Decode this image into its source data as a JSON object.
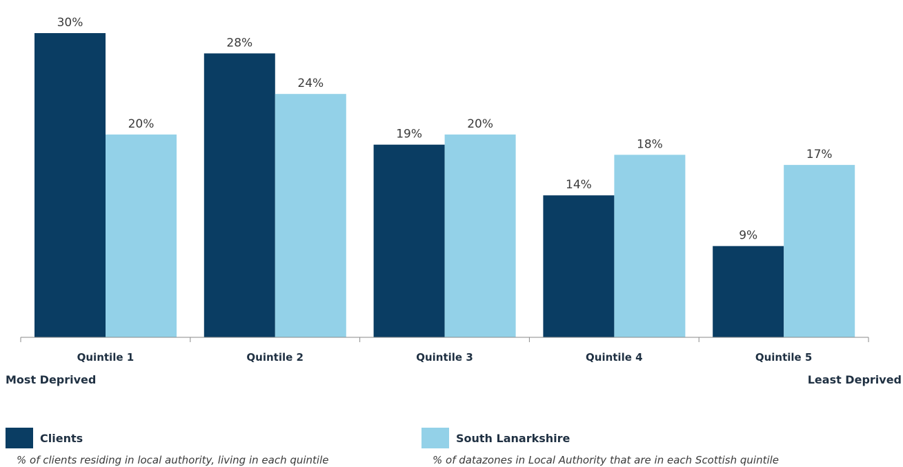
{
  "chart_data": {
    "type": "bar",
    "categories": [
      "Quintile 1",
      "Quintile 2",
      "Quintile 3",
      "Quintile 4",
      "Quintile 5"
    ],
    "series": [
      {
        "name": "Clients",
        "color": "#0a3d63",
        "values": [
          30,
          28,
          19,
          14,
          9
        ],
        "labels": [
          "30%",
          "28%",
          "19%",
          "14%",
          "9%"
        ],
        "description": "% of clients residing in local authority, living in each quintile"
      },
      {
        "name": "South Lanarkshire",
        "color": "#93d1e8",
        "values": [
          20,
          24,
          20,
          18,
          17
        ],
        "labels": [
          "20%",
          "24%",
          "20%",
          "18%",
          "17%"
        ],
        "description": "% of datazones in Local Authority that are in each Scottish quintile"
      }
    ],
    "ylim": [
      0,
      32
    ],
    "unit": "%",
    "grid": false,
    "legend_position": "bottom",
    "axis_annotations": {
      "left": "Most Deprived",
      "right": "Least Deprived"
    }
  }
}
